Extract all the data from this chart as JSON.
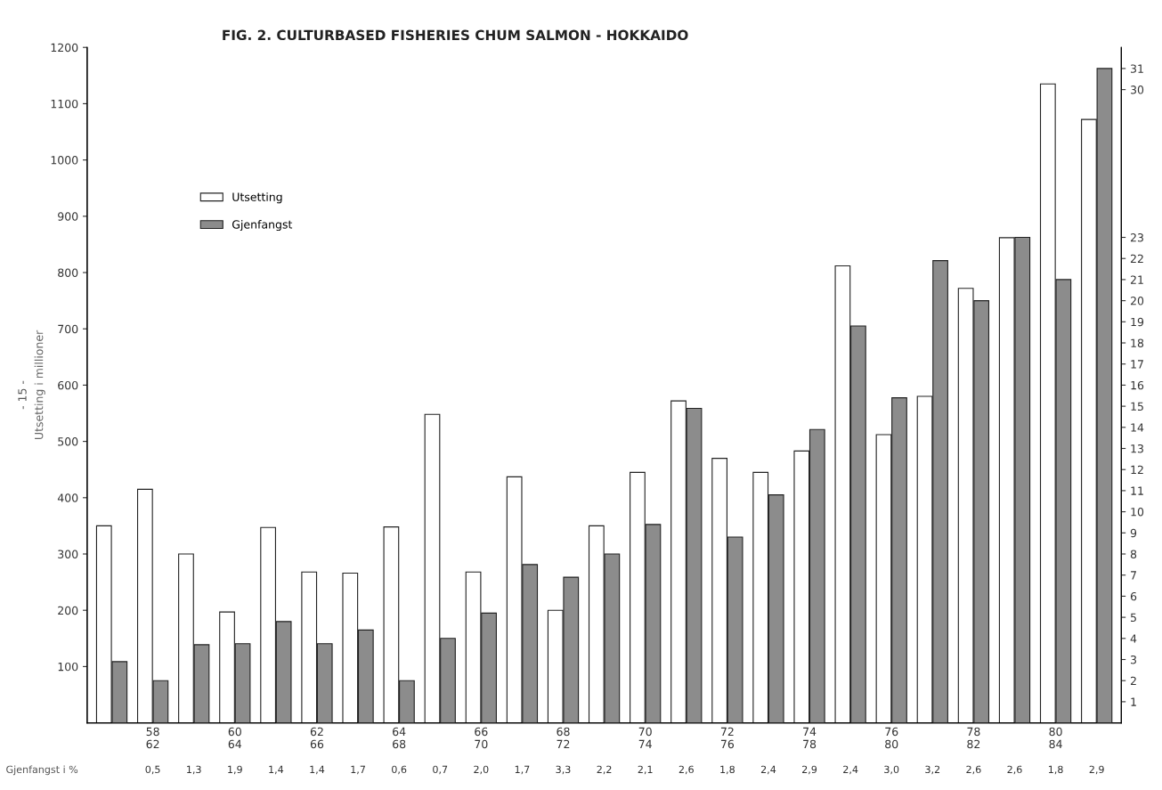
{
  "chart_data": {
    "type": "bar",
    "title": "FIG. 2. CULTURBASED FISHERIES CHUM SALMON - HOKKAIDO",
    "ylabel": "Utsetting i millioner",
    "categories": [
      null,
      "58\n62",
      null,
      "60\n64",
      null,
      "62\n66",
      null,
      "64\n68",
      null,
      "66\n70",
      null,
      "68\n72",
      null,
      "70\n74",
      null,
      "72\n76",
      null,
      "74\n78",
      null,
      "76\n80",
      null,
      "78\n82",
      null,
      "80\n84",
      null
    ],
    "series": [
      {
        "name": "Utsetting",
        "color": "#ffffff",
        "values": [
          350,
          415,
          300,
          197,
          347,
          268,
          266,
          348,
          548,
          268,
          437,
          200,
          350,
          445,
          572,
          470,
          445,
          483,
          812,
          512,
          580,
          772,
          862,
          1135,
          1072
        ]
      },
      {
        "name": "Gjenfangst",
        "color": "#8c8c8c",
        "axis": "y2",
        "values": [
          2.9,
          2.0,
          3.7,
          3.75,
          4.8,
          3.75,
          4.4,
          2.0,
          4.0,
          5.2,
          7.5,
          6.9,
          8.0,
          9.4,
          14.9,
          8.8,
          10.8,
          13.9,
          18.8,
          15.4,
          21.9,
          20.0,
          23.0,
          21.0,
          31.0
        ]
      }
    ],
    "ylim": [
      0,
      1200
    ],
    "yticks": [
      100,
      200,
      300,
      400,
      500,
      600,
      700,
      800,
      900,
      1000,
      1100,
      1200
    ],
    "y2lim": [
      0,
      32
    ],
    "y2ticks": [
      1,
      2,
      3,
      4,
      5,
      6,
      7,
      8,
      9,
      10,
      11,
      12,
      13,
      14,
      15,
      16,
      17,
      18,
      19,
      20,
      21,
      22,
      23,
      30,
      31
    ],
    "legend": "top left",
    "grid": false,
    "annotations": [
      "- 15 -",
      "Gjenfangst i %",
      "0,5",
      "1,3",
      "1,9",
      "1,4",
      "1,4",
      "1,7",
      "0,6",
      "0,7",
      "2,0",
      "1,7",
      "3,3",
      "2,2",
      "2,1",
      "2,6",
      "1,8",
      "2,4",
      "2,9",
      "2,4",
      "3,0",
      "3,2",
      "2,6",
      "2,6",
      "1,8",
      "2,9"
    ]
  }
}
